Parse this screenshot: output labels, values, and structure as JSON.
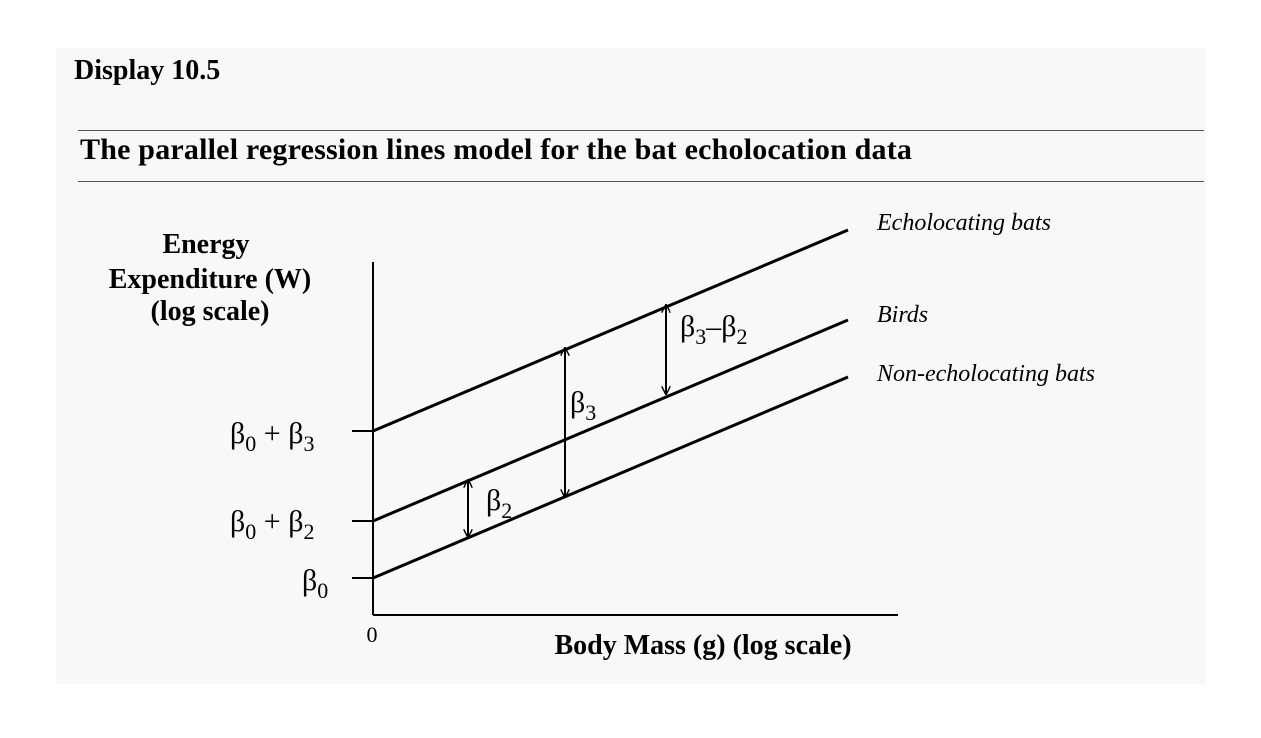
{
  "display_label": "Display 10.5",
  "heading": "The parallel regression lines model for the bat echolocation data",
  "y_axis_label": [
    "Energy",
    "Expenditure (W)",
    "(log scale)"
  ],
  "x_axis_label": "Body Mass (g) (log scale)",
  "x_origin_label": "0",
  "lines": [
    {
      "name": "Echolocating bats"
    },
    {
      "name": "Birds"
    },
    {
      "name": "Non-echolocating bats"
    }
  ],
  "intercept_labels": {
    "b0_b3": {
      "base": "β",
      "sub1": "0",
      "plus": " + ",
      "base2": "β",
      "sub2": "3"
    },
    "b0_b2": {
      "base": "β",
      "sub1": "0",
      "plus": " + ",
      "base2": "β",
      "sub2": "2"
    },
    "b0": {
      "base": "β",
      "sub1": "0"
    }
  },
  "gap_labels": {
    "beta2": {
      "base": "β",
      "sub": "2"
    },
    "beta3": {
      "base": "β",
      "sub": "3"
    },
    "beta3_minus_beta2": {
      "base": "β",
      "sub1": "3",
      "minus": "–",
      "base2": "β",
      "sub2": "2"
    }
  }
}
